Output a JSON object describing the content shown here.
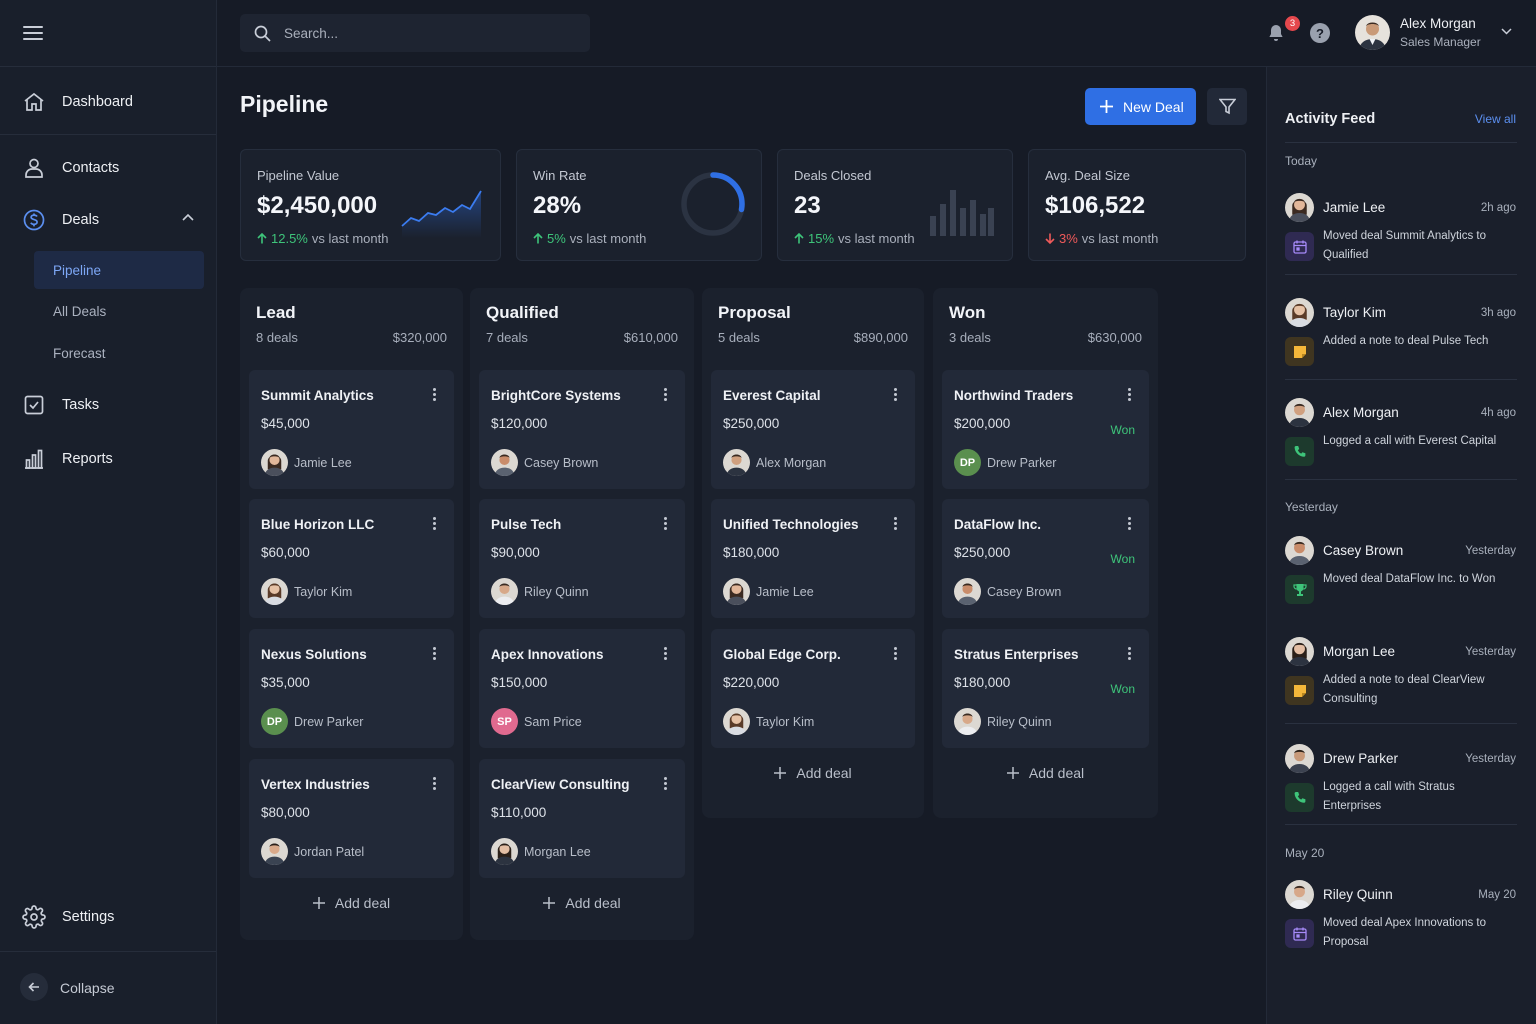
{
  "sidebar": {
    "nav": {
      "dashboard": "Dashboard",
      "contacts": "Contacts",
      "deals": "Deals",
      "tasks": "Tasks",
      "reports": "Reports",
      "settings": "Settings"
    },
    "deals_sub": [
      "Pipeline",
      "All Deals",
      "Forecast"
    ],
    "collapse": "Collapse"
  },
  "header": {
    "search_placeholder": "Search...",
    "notifications_count": "3",
    "help": "?",
    "user_name": "Alex Morgan",
    "user_role": "Sales Manager"
  },
  "page": {
    "title": "Pipeline",
    "new_deal": "New Deal"
  },
  "stats": [
    {
      "label": "Pipeline Value",
      "value": "$2,450,000",
      "change": "12.5%",
      "direction": "up",
      "suffix": "vs last month"
    },
    {
      "label": "Win Rate",
      "value": "28%",
      "change": "5%",
      "direction": "up",
      "suffix": "vs last month",
      "gauge_fraction": 0.28
    },
    {
      "label": "Deals Closed",
      "value": "23",
      "change": "15%",
      "direction": "up",
      "suffix": "vs last month"
    },
    {
      "label": "Avg. Deal Size",
      "value": "$106,522",
      "change": "3%",
      "direction": "down",
      "suffix": "vs last month"
    }
  ],
  "columns": [
    {
      "name": "Lead",
      "count": "8 deals",
      "total": "$320,000",
      "cards": [
        {
          "name": "Summit Analytics",
          "amount": "$45,000",
          "owner": "Jamie Lee"
        },
        {
          "name": "Blue Horizon LLC",
          "amount": "$60,000",
          "owner": "Taylor Kim"
        },
        {
          "name": "Nexus Solutions",
          "amount": "$35,000",
          "owner": "Drew Parker",
          "initials": "DP"
        },
        {
          "name": "Vertex Industries",
          "amount": "$80,000",
          "owner": "Jordan Patel"
        }
      ]
    },
    {
      "name": "Qualified",
      "count": "7 deals",
      "total": "$610,000",
      "cards": [
        {
          "name": "BrightCore Systems",
          "amount": "$120,000",
          "owner": "Casey Brown"
        },
        {
          "name": "Pulse Tech",
          "amount": "$90,000",
          "owner": "Riley Quinn"
        },
        {
          "name": "Apex Innovations",
          "amount": "$150,000",
          "owner": "Sam Price",
          "initials": "SP"
        },
        {
          "name": "ClearView Consulting",
          "amount": "$110,000",
          "owner": "Morgan Lee"
        }
      ]
    },
    {
      "name": "Proposal",
      "count": "5 deals",
      "total": "$890,000",
      "cards": [
        {
          "name": "Everest Capital",
          "amount": "$250,000",
          "owner": "Alex Morgan"
        },
        {
          "name": "Unified Technologies",
          "amount": "$180,000",
          "owner": "Jamie Lee"
        },
        {
          "name": "Global Edge Corp.",
          "amount": "$220,000",
          "owner": "Taylor Kim"
        }
      ]
    },
    {
      "name": "Won",
      "count": "3 deals",
      "total": "$630,000",
      "cards": [
        {
          "name": "Northwind Traders",
          "amount": "$200,000",
          "owner": "Drew Parker",
          "initials": "DP",
          "status": "Won"
        },
        {
          "name": "DataFlow Inc.",
          "amount": "$250,000",
          "owner": "Casey Brown",
          "status": "Won"
        },
        {
          "name": "Stratus Enterprises",
          "amount": "$180,000",
          "owner": "Riley Quinn",
          "status": "Won"
        }
      ]
    }
  ],
  "add_deal": "Add deal",
  "activity": {
    "title": "Activity Feed",
    "view_all": "View all",
    "groups": {
      "today": "Today",
      "yesterday": "Yesterday",
      "may20": "May 20"
    },
    "items": [
      {
        "name": "Jamie Lee",
        "time": "2h ago",
        "text": "Moved deal Summit Analytics to Qualified",
        "icon": "calendar-icon"
      },
      {
        "name": "Taylor Kim",
        "time": "3h ago",
        "text": "Added a note to deal Pulse Tech",
        "icon": "note-icon"
      },
      {
        "name": "Alex Morgan",
        "time": "4h ago",
        "text": "Logged a call with Everest Capital",
        "icon": "phone-icon"
      },
      {
        "name": "Casey Brown",
        "time": "Yesterday",
        "text": "Moved deal DataFlow Inc. to Won",
        "icon": "trophy-icon"
      },
      {
        "name": "Morgan Lee",
        "time": "Yesterday",
        "text": "Added a note to deal ClearView Consulting",
        "icon": "note-icon"
      },
      {
        "name": "Drew Parker",
        "time": "Yesterday",
        "text": "Logged a call with Stratus Enterprises",
        "icon": "phone-icon"
      },
      {
        "name": "Riley Quinn",
        "time": "May 20",
        "text": "Moved deal Apex Innovations to Proposal",
        "icon": "calendar-icon"
      }
    ]
  },
  "colors": {
    "accent": "#2f6fe4",
    "up": "#3ec47a",
    "down": "#ef5a5a",
    "won": "#3ec47a"
  }
}
